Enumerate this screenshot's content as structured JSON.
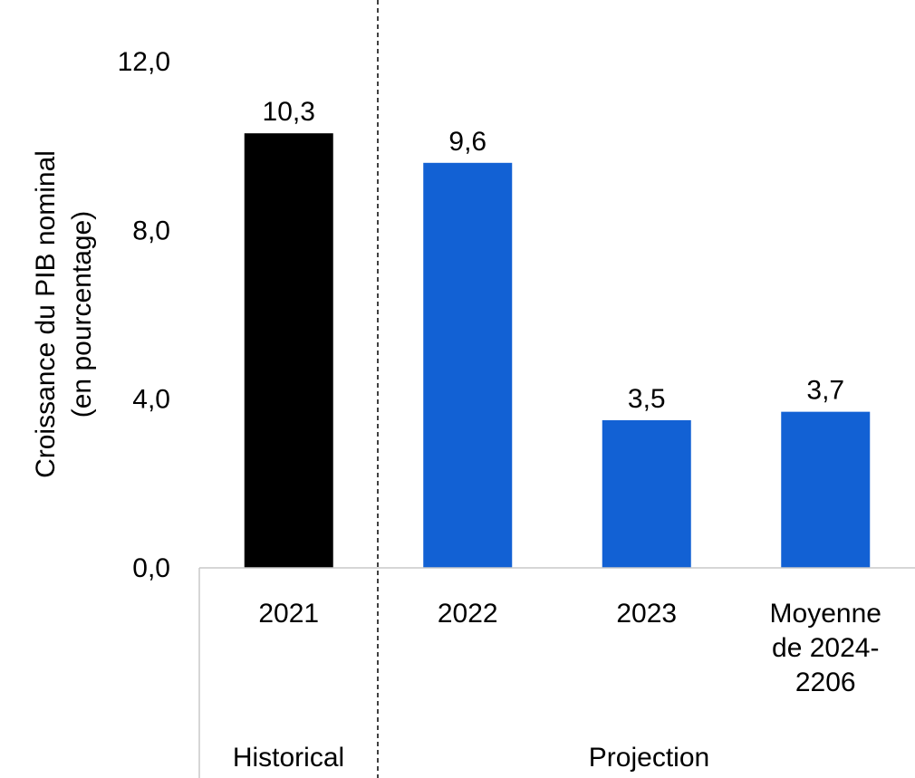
{
  "chart_data": {
    "type": "bar",
    "ylabel": [
      "Croissance du PIB nominal",
      "(en pourcentage)"
    ],
    "ylim": [
      0,
      12
    ],
    "yticks": [
      "0,0",
      "4,0",
      "8,0",
      "12,0"
    ],
    "yticks_values": [
      0,
      4,
      8,
      12
    ],
    "categories": [
      {
        "lines": [
          "2021"
        ],
        "group": "Historical"
      },
      {
        "lines": [
          "2022"
        ],
        "group": "Projection"
      },
      {
        "lines": [
          "2023"
        ],
        "group": "Projection"
      },
      {
        "lines": [
          "Moyenne",
          "de 2024-",
          "2206"
        ],
        "group": "Projection"
      }
    ],
    "values": [
      10.3,
      9.6,
      3.5,
      3.7
    ],
    "value_labels": [
      "10,3",
      "9,6",
      "3,5",
      "3,7"
    ],
    "groups": [
      "Historical",
      "Projection"
    ],
    "colors": {
      "historical": "#000000",
      "projection": "#1261d4"
    },
    "grid": false,
    "legend": "none"
  }
}
